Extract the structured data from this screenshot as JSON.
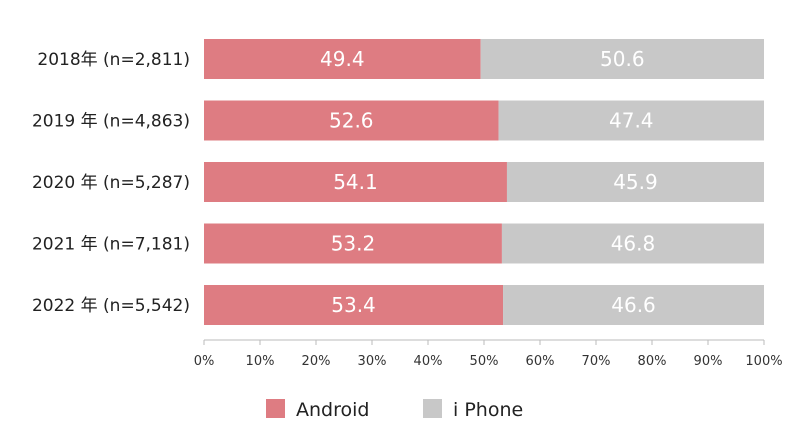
{
  "chart_data": {
    "type": "bar",
    "orientation": "horizontal",
    "stacked": true,
    "categories": [
      "2018年 (n=2,811)",
      "2019 年 (n=4,863)",
      "2020 年 (n=5,287)",
      "2021 年 (n=7,181)",
      "2022 年 (n=5,542)"
    ],
    "series": [
      {
        "name": "Android",
        "values": [
          49.4,
          52.6,
          54.1,
          53.2,
          53.4
        ],
        "color": "#de7c82"
      },
      {
        "name": "i Phone",
        "values": [
          50.6,
          47.4,
          45.9,
          46.8,
          46.6
        ],
        "color": "#c8c8c8"
      }
    ],
    "xlim": [
      0,
      100
    ],
    "x_ticks": [
      "0%",
      "10%",
      "20%",
      "30%",
      "40%",
      "50%",
      "60%",
      "70%",
      "80%",
      "90%",
      "100%"
    ],
    "grid": false,
    "legend_position": "bottom",
    "title": "",
    "xlabel": "",
    "ylabel": ""
  },
  "colors": {
    "axis": "#bbbbbb",
    "label_text": "#ffffff"
  }
}
